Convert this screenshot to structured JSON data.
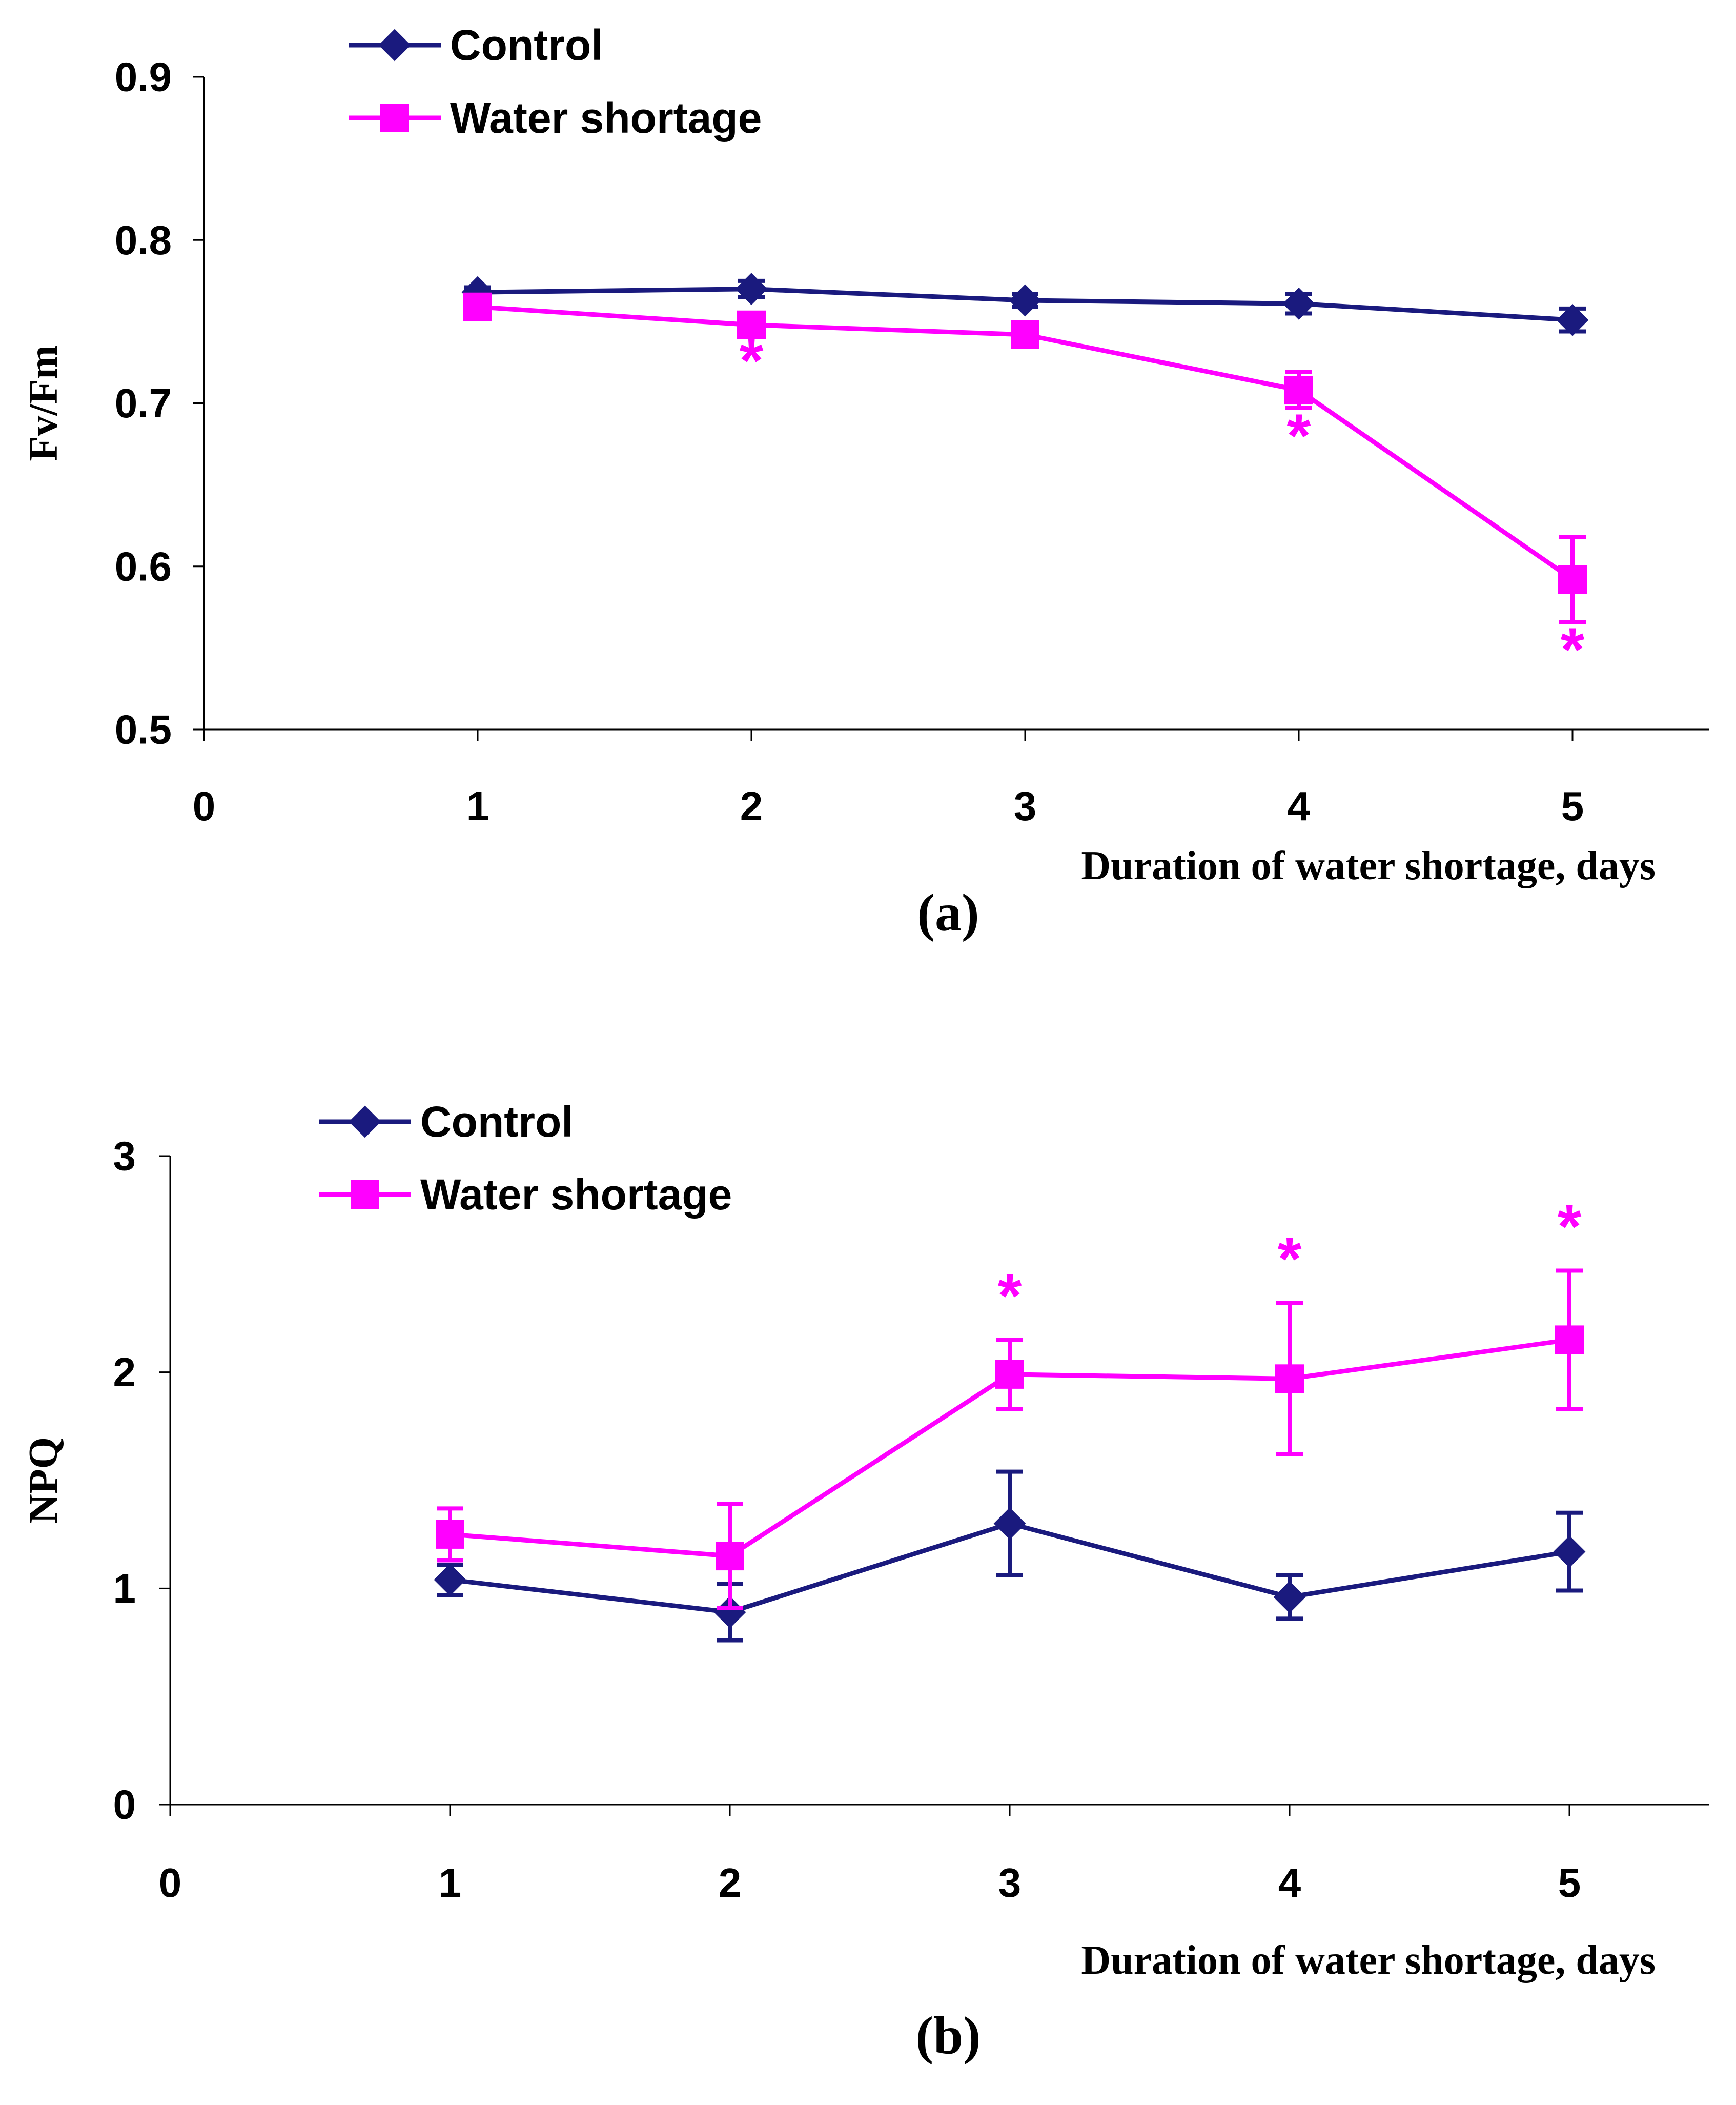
{
  "chart_data": [
    {
      "type": "line",
      "panel_label": "(a)",
      "ylabel": "Fv/Fm",
      "xlabel": "Duration of water shortage, days",
      "xlim": [
        0,
        5.5
      ],
      "ylim": [
        0.5,
        0.9
      ],
      "x_ticks": [
        0,
        1,
        2,
        3,
        4,
        5
      ],
      "y_ticks": [
        0.5,
        0.6,
        0.7,
        0.8,
        0.9
      ],
      "y_tick_labels": [
        "0.5",
        "0.6",
        "0.7",
        "0.8",
        "0.9"
      ],
      "legend_position": "top-left",
      "significance_mark": "*",
      "series": [
        {
          "name": "Control",
          "color": "#1a1a7e",
          "marker": "diamond",
          "x": [
            1,
            2,
            3,
            4,
            5
          ],
          "values": [
            0.768,
            0.77,
            0.763,
            0.761,
            0.751
          ],
          "errors": [
            0.003,
            0.005,
            0.004,
            0.006,
            0.007
          ],
          "significant": [
            false,
            false,
            false,
            false,
            false
          ]
        },
        {
          "name": "Water shortage",
          "color": "#ff00ff",
          "marker": "square",
          "x": [
            1,
            2,
            3,
            4,
            5
          ],
          "values": [
            0.759,
            0.748,
            0.742,
            0.708,
            0.592
          ],
          "errors": [
            0.004,
            0.005,
            0.005,
            0.011,
            0.026
          ],
          "significant": [
            false,
            true,
            false,
            true,
            true
          ]
        }
      ]
    },
    {
      "type": "line",
      "panel_label": "(b)",
      "ylabel": "NPQ",
      "xlabel": "Duration of water shortage, days",
      "xlim": [
        0,
        5.5
      ],
      "ylim": [
        0,
        3
      ],
      "x_ticks": [
        0,
        1,
        2,
        3,
        4,
        5
      ],
      "y_ticks": [
        0,
        1,
        2,
        3
      ],
      "y_tick_labels": [
        "0",
        "1",
        "2",
        "3"
      ],
      "legend_position": "top-left",
      "significance_mark": "*",
      "series": [
        {
          "name": "Control",
          "color": "#1a1a7e",
          "marker": "diamond",
          "x": [
            1,
            2,
            3,
            4,
            5
          ],
          "values": [
            1.04,
            0.89,
            1.3,
            0.96,
            1.17
          ],
          "errors": [
            0.07,
            0.13,
            0.24,
            0.1,
            0.18
          ],
          "significant": [
            false,
            false,
            false,
            false,
            false
          ]
        },
        {
          "name": "Water shortage",
          "color": "#ff00ff",
          "marker": "square",
          "x": [
            1,
            2,
            3,
            4,
            5
          ],
          "values": [
            1.25,
            1.15,
            1.99,
            1.97,
            2.15
          ],
          "errors": [
            0.12,
            0.24,
            0.16,
            0.35,
            0.32
          ],
          "significant": [
            false,
            false,
            true,
            true,
            true
          ]
        }
      ]
    }
  ]
}
